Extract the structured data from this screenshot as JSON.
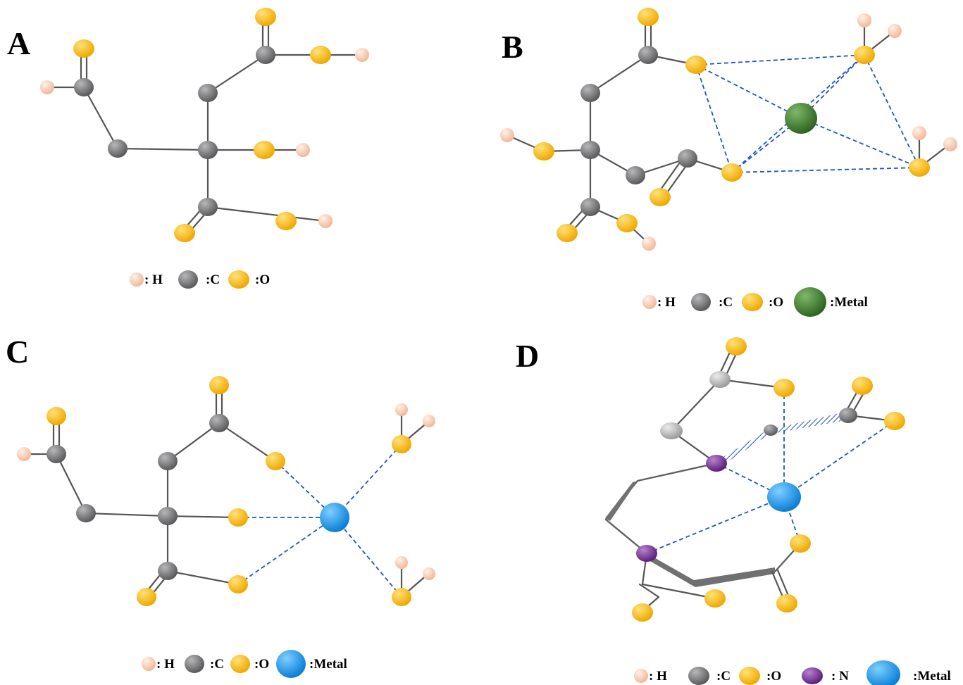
{
  "colors": {
    "H": "#f7c9ae",
    "C": "#6e6e70",
    "O": "#f7b500",
    "N": "#6a2a8a",
    "metal_green": "#3f7d2c",
    "metal_blue": "#1596ea",
    "coordination_bond": "#1a55c8",
    "bond": "#555555"
  },
  "panels": {
    "A": {
      "letter": "A",
      "legend": {
        "h": ": H",
        "c": ":C",
        "o": ":O"
      }
    },
    "B": {
      "letter": "B",
      "legend": {
        "h": ": H",
        "c": ":C",
        "o": ":O",
        "metal": ":Metal"
      }
    },
    "C": {
      "letter": "C",
      "legend": {
        "h": ": H",
        "c": ":C",
        "o": ":O",
        "metal": ":Metal"
      }
    },
    "D": {
      "letter": "D",
      "legend": {
        "h": ": H",
        "c": ":C",
        "o": ":O",
        "n": ": N",
        "metal": ":Metal"
      }
    }
  }
}
